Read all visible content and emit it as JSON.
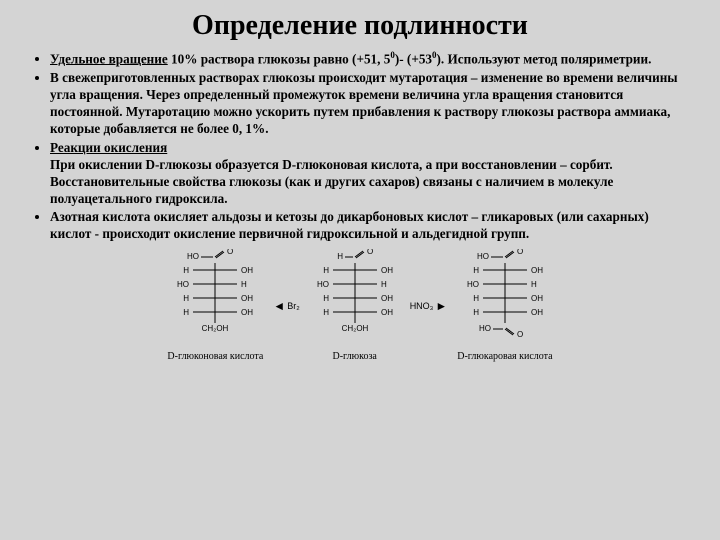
{
  "title": "Определение подлинности",
  "bullets": [
    "<span class='und'>Удельное вращение</span>  10% раствора глюкозы равно (+51, 5<span class='sup'>0</span>)- (+53<span class='sup'>0</span>). Используют метод поляриметрии.",
    "В свежеприготовленных растворах глюкозы происходит мутаротация – изменение во времени величины угла вращения. Через определенный промежуток времени величина угла вращения становится постоянной. Мутаротацию можно ускорить путем прибавления к раствору глюкозы раствора аммиака, которые добавляется не более 0, 1%.",
    "<span class='und'>Реакции окисления</span><br>При окислении D-глюкозы образуется D-глюконовая кислота, а при восстановлении – сорбит. Восстановительные свойства глюкозы (как и других сахаров) связаны с наличием в молекуле полуацетального гидроксила.",
    "Азотная кислота окисляет альдозы и кетозы до дикарбоновых кислот – гликаровых (или сахарных) кислот - происходит окисление первичной гидроксильной и альдегидной групп."
  ],
  "captions": [
    "D-глюконовая кислота",
    "D-глюкоза",
    "D-глюкаровая кислота"
  ],
  "reagents": [
    "Br₂",
    "HNO₃"
  ],
  "molecules": [
    {
      "top": "cooh",
      "rows": [
        "R",
        "L",
        "R",
        "R"
      ],
      "bottom": "ch2oh"
    },
    {
      "top": "cho",
      "rows": [
        "R",
        "L",
        "R",
        "R"
      ],
      "bottom": "ch2oh"
    },
    {
      "top": "cooh",
      "rows": [
        "R",
        "L",
        "R",
        "R"
      ],
      "bottom": "cooh"
    }
  ],
  "style": {
    "bg": "#d4d4d4",
    "text": "#000000",
    "line": "#000000",
    "title_size": 28,
    "body_size": 13.2,
    "caption_size": 10,
    "mol_font": 8
  }
}
